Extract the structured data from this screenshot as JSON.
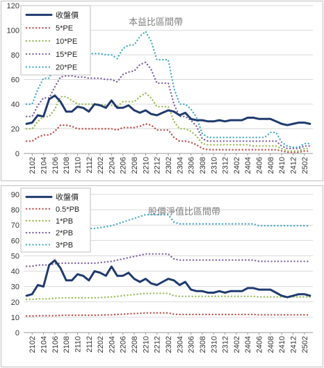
{
  "charts": [
    {
      "id": "pe-band",
      "type": "line",
      "title": "本益比區間帶",
      "ylim": [
        0,
        120
      ],
      "yticks": [
        0,
        20,
        40,
        60,
        80,
        100,
        120
      ],
      "grid": true,
      "legend_position": "top-left",
      "x_categories": [
        "2101",
        "2102",
        "2103",
        "2104",
        "2105",
        "2106",
        "2107",
        "2108",
        "2109",
        "2110",
        "2111",
        "2112",
        "2201",
        "2202",
        "2203",
        "2204",
        "2205",
        "2206",
        "2207",
        "2208",
        "2209",
        "2210",
        "2211",
        "2212",
        "2301",
        "2302",
        "2303",
        "2304",
        "2305",
        "2306",
        "2307",
        "2308",
        "2309",
        "2310",
        "2311",
        "2312",
        "2401",
        "2402",
        "2403",
        "2404",
        "2405",
        "2406",
        "2407",
        "2408",
        "2409",
        "2410",
        "2411",
        "2412",
        "2501",
        "2502",
        "2503"
      ],
      "x_tick_labels": [
        "2102",
        "2104",
        "2106",
        "2108",
        "2110",
        "2112",
        "2202",
        "2204",
        "2206",
        "2208",
        "2210",
        "2212",
        "2302",
        "2304",
        "2306",
        "2308",
        "2310",
        "2312",
        "2402",
        "2404",
        "2406",
        "2408",
        "2410",
        "2412",
        "2502"
      ],
      "series": [
        {
          "name": "收盤價",
          "color": "#1f3a6e",
          "style": "solid",
          "width": 3,
          "values": [
            24,
            25,
            31,
            30,
            44,
            47,
            42,
            34,
            34,
            38,
            37,
            34,
            40,
            39,
            37,
            43,
            37,
            37,
            39,
            35,
            33,
            35,
            32,
            31,
            33,
            35,
            34,
            31,
            33,
            28,
            27,
            27,
            26,
            26,
            27,
            26,
            27,
            27,
            27,
            29,
            29,
            28,
            28,
            28,
            26,
            24,
            23,
            24,
            25,
            25,
            24
          ]
        },
        {
          "name": "5*PE",
          "color": "#c0504d",
          "style": "dotted",
          "width": 2.4,
          "values": [
            10,
            10,
            13,
            15,
            15,
            18,
            23,
            23,
            22,
            20,
            20,
            20,
            20,
            20,
            20,
            20,
            19,
            21,
            21,
            21,
            22,
            24,
            23,
            19,
            19,
            19,
            13,
            10,
            10,
            9,
            7,
            4,
            3,
            3,
            3,
            3,
            3,
            3,
            3,
            3,
            3,
            3,
            3,
            3,
            3,
            2,
            1,
            1,
            1,
            2,
            2
          ]
        },
        {
          "name": "10*PE",
          "color": "#9bbb59",
          "style": "dotted",
          "width": 2.4,
          "values": [
            20,
            20,
            26,
            30,
            30,
            36,
            46,
            46,
            43,
            40,
            40,
            40,
            40,
            40,
            39,
            39,
            38,
            42,
            42,
            42,
            46,
            49,
            45,
            38,
            38,
            38,
            26,
            20,
            20,
            18,
            14,
            8,
            7,
            7,
            7,
            7,
            7,
            7,
            7,
            7,
            6,
            6,
            6,
            6,
            6,
            4,
            2,
            2,
            2,
            4,
            4
          ]
        },
        {
          "name": "15*PE",
          "color": "#8064a2",
          "style": "dotted",
          "width": 2.4,
          "values": [
            30,
            30,
            39,
            45,
            45,
            54,
            62,
            63,
            63,
            62,
            62,
            61,
            61,
            61,
            60,
            60,
            58,
            64,
            66,
            67,
            72,
            74,
            68,
            57,
            57,
            57,
            40,
            30,
            30,
            27,
            22,
            12,
            10,
            10,
            10,
            10,
            10,
            10,
            10,
            10,
            10,
            10,
            10,
            10,
            10,
            6,
            4,
            4,
            4,
            6,
            6
          ]
        },
        {
          "name": "20*PE",
          "color": "#4bacc6",
          "style": "dotted",
          "width": 2.4,
          "values": [
            40,
            40,
            52,
            61,
            61,
            72,
            83,
            84,
            83,
            82,
            82,
            81,
            81,
            81,
            80,
            80,
            77,
            85,
            88,
            88,
            95,
            99,
            91,
            76,
            76,
            76,
            53,
            40,
            40,
            36,
            29,
            16,
            13,
            13,
            13,
            13,
            13,
            13,
            13,
            13,
            13,
            13,
            13,
            17,
            17,
            9,
            6,
            5,
            5,
            8,
            8
          ]
        }
      ]
    },
    {
      "id": "pb-band",
      "type": "line",
      "title": "股價淨值比區間帶",
      "ylim": [
        0,
        90
      ],
      "yticks": [
        0,
        10,
        20,
        30,
        40,
        50,
        60,
        70,
        80,
        90
      ],
      "grid": true,
      "legend_position": "top-left",
      "x_categories": [
        "2101",
        "2102",
        "2103",
        "2104",
        "2105",
        "2106",
        "2107",
        "2108",
        "2109",
        "2110",
        "2111",
        "2112",
        "2201",
        "2202",
        "2203",
        "2204",
        "2205",
        "2206",
        "2207",
        "2208",
        "2209",
        "2210",
        "2211",
        "2212",
        "2301",
        "2302",
        "2303",
        "2304",
        "2305",
        "2306",
        "2307",
        "2308",
        "2309",
        "2310",
        "2311",
        "2312",
        "2401",
        "2402",
        "2403",
        "2404",
        "2405",
        "2406",
        "2407",
        "2408",
        "2409",
        "2410",
        "2411",
        "2412",
        "2501",
        "2502",
        "2503"
      ],
      "x_tick_labels": [
        "2102",
        "2104",
        "2106",
        "2108",
        "2110",
        "2112",
        "2202",
        "2204",
        "2206",
        "2208",
        "2210",
        "2212",
        "2302",
        "2304",
        "2306",
        "2308",
        "2310",
        "2312",
        "2402",
        "2404",
        "2406",
        "2408",
        "2410",
        "2412",
        "2502"
      ],
      "series": [
        {
          "name": "收盤價",
          "color": "#1f3a6e",
          "style": "solid",
          "width": 3,
          "values": [
            24,
            25,
            31,
            30,
            44,
            47,
            42,
            34,
            34,
            38,
            37,
            34,
            40,
            39,
            37,
            43,
            37,
            37,
            39,
            35,
            33,
            35,
            32,
            31,
            33,
            35,
            34,
            31,
            33,
            28,
            27,
            27,
            26,
            26,
            27,
            26,
            27,
            27,
            27,
            29,
            29,
            28,
            28,
            28,
            26,
            24,
            23,
            24,
            25,
            25,
            24
          ]
        },
        {
          "name": "0.5*PB",
          "color": "#c0504d",
          "style": "dotted",
          "width": 2.4,
          "values": [
            10.8,
            10.8,
            11,
            11,
            11,
            11,
            11.2,
            11.3,
            11.3,
            11.3,
            11.3,
            11.3,
            11.3,
            11.4,
            11.5,
            11.6,
            11.8,
            12,
            12.2,
            12.4,
            12.6,
            12.8,
            12.8,
            12.8,
            12.8,
            12.8,
            12,
            11.8,
            11.8,
            11.8,
            11.8,
            11.8,
            11.8,
            11.8,
            11.8,
            11.8,
            11.8,
            11.8,
            11.8,
            11.8,
            11.8,
            11.6,
            11.6,
            11.6,
            11.6,
            11.6,
            11.6,
            11.6,
            11.6,
            11.6,
            11.6
          ]
        },
        {
          "name": "1*PB",
          "color": "#9bbb59",
          "style": "dotted",
          "width": 2.4,
          "values": [
            21.6,
            21.6,
            22,
            22,
            22,
            22.4,
            22.6,
            22.6,
            22.6,
            22.6,
            22.6,
            22.6,
            22.6,
            22.8,
            23,
            23.2,
            23.6,
            24,
            24.4,
            24.8,
            25.2,
            25.6,
            25.6,
            25.6,
            25.6,
            25.6,
            24,
            23.6,
            23.6,
            23.6,
            23.6,
            23.6,
            23.6,
            23.6,
            23.6,
            23.6,
            23.6,
            23.6,
            23.6,
            23.6,
            23.6,
            23.2,
            23.2,
            23.2,
            23.2,
            23.2,
            23.2,
            23.2,
            23.2,
            23.2,
            23.2
          ]
        },
        {
          "name": "2*PB",
          "color": "#8064a2",
          "style": "dotted",
          "width": 2.4,
          "values": [
            43.2,
            43.2,
            44,
            44,
            44,
            44.8,
            45.2,
            45.2,
            45.2,
            45.2,
            45.2,
            45.2,
            45.2,
            45.6,
            46,
            46.4,
            47.2,
            48,
            48.8,
            49.6,
            50.4,
            51.2,
            51.2,
            51.2,
            51.2,
            51.2,
            48,
            47.2,
            47.2,
            47.2,
            47.2,
            47.2,
            47.2,
            47.2,
            47.2,
            47.2,
            47.2,
            47.2,
            47.2,
            47.2,
            47.2,
            46.4,
            46.4,
            46.4,
            46.4,
            46.4,
            46.4,
            46.4,
            46.4,
            46.4,
            46.4
          ]
        },
        {
          "name": "3*PB",
          "color": "#4bacc6",
          "style": "dotted",
          "width": 2.4,
          "values": [
            64.8,
            64.8,
            66,
            66,
            66,
            67.2,
            67.8,
            67.8,
            67.8,
            67.8,
            67.8,
            67.8,
            67.8,
            68.4,
            69,
            69.6,
            70.8,
            72,
            73.2,
            74.4,
            75.6,
            76.8,
            76.8,
            76.8,
            76.8,
            76.8,
            72,
            70.8,
            70.8,
            70.8,
            70.8,
            70.8,
            70.8,
            70.8,
            70.8,
            70.8,
            70.8,
            70.8,
            70.8,
            70.8,
            70.8,
            69.6,
            69.6,
            69.6,
            69.6,
            69.6,
            69.6,
            69.6,
            69.6,
            69.6,
            69.6
          ]
        }
      ]
    }
  ]
}
